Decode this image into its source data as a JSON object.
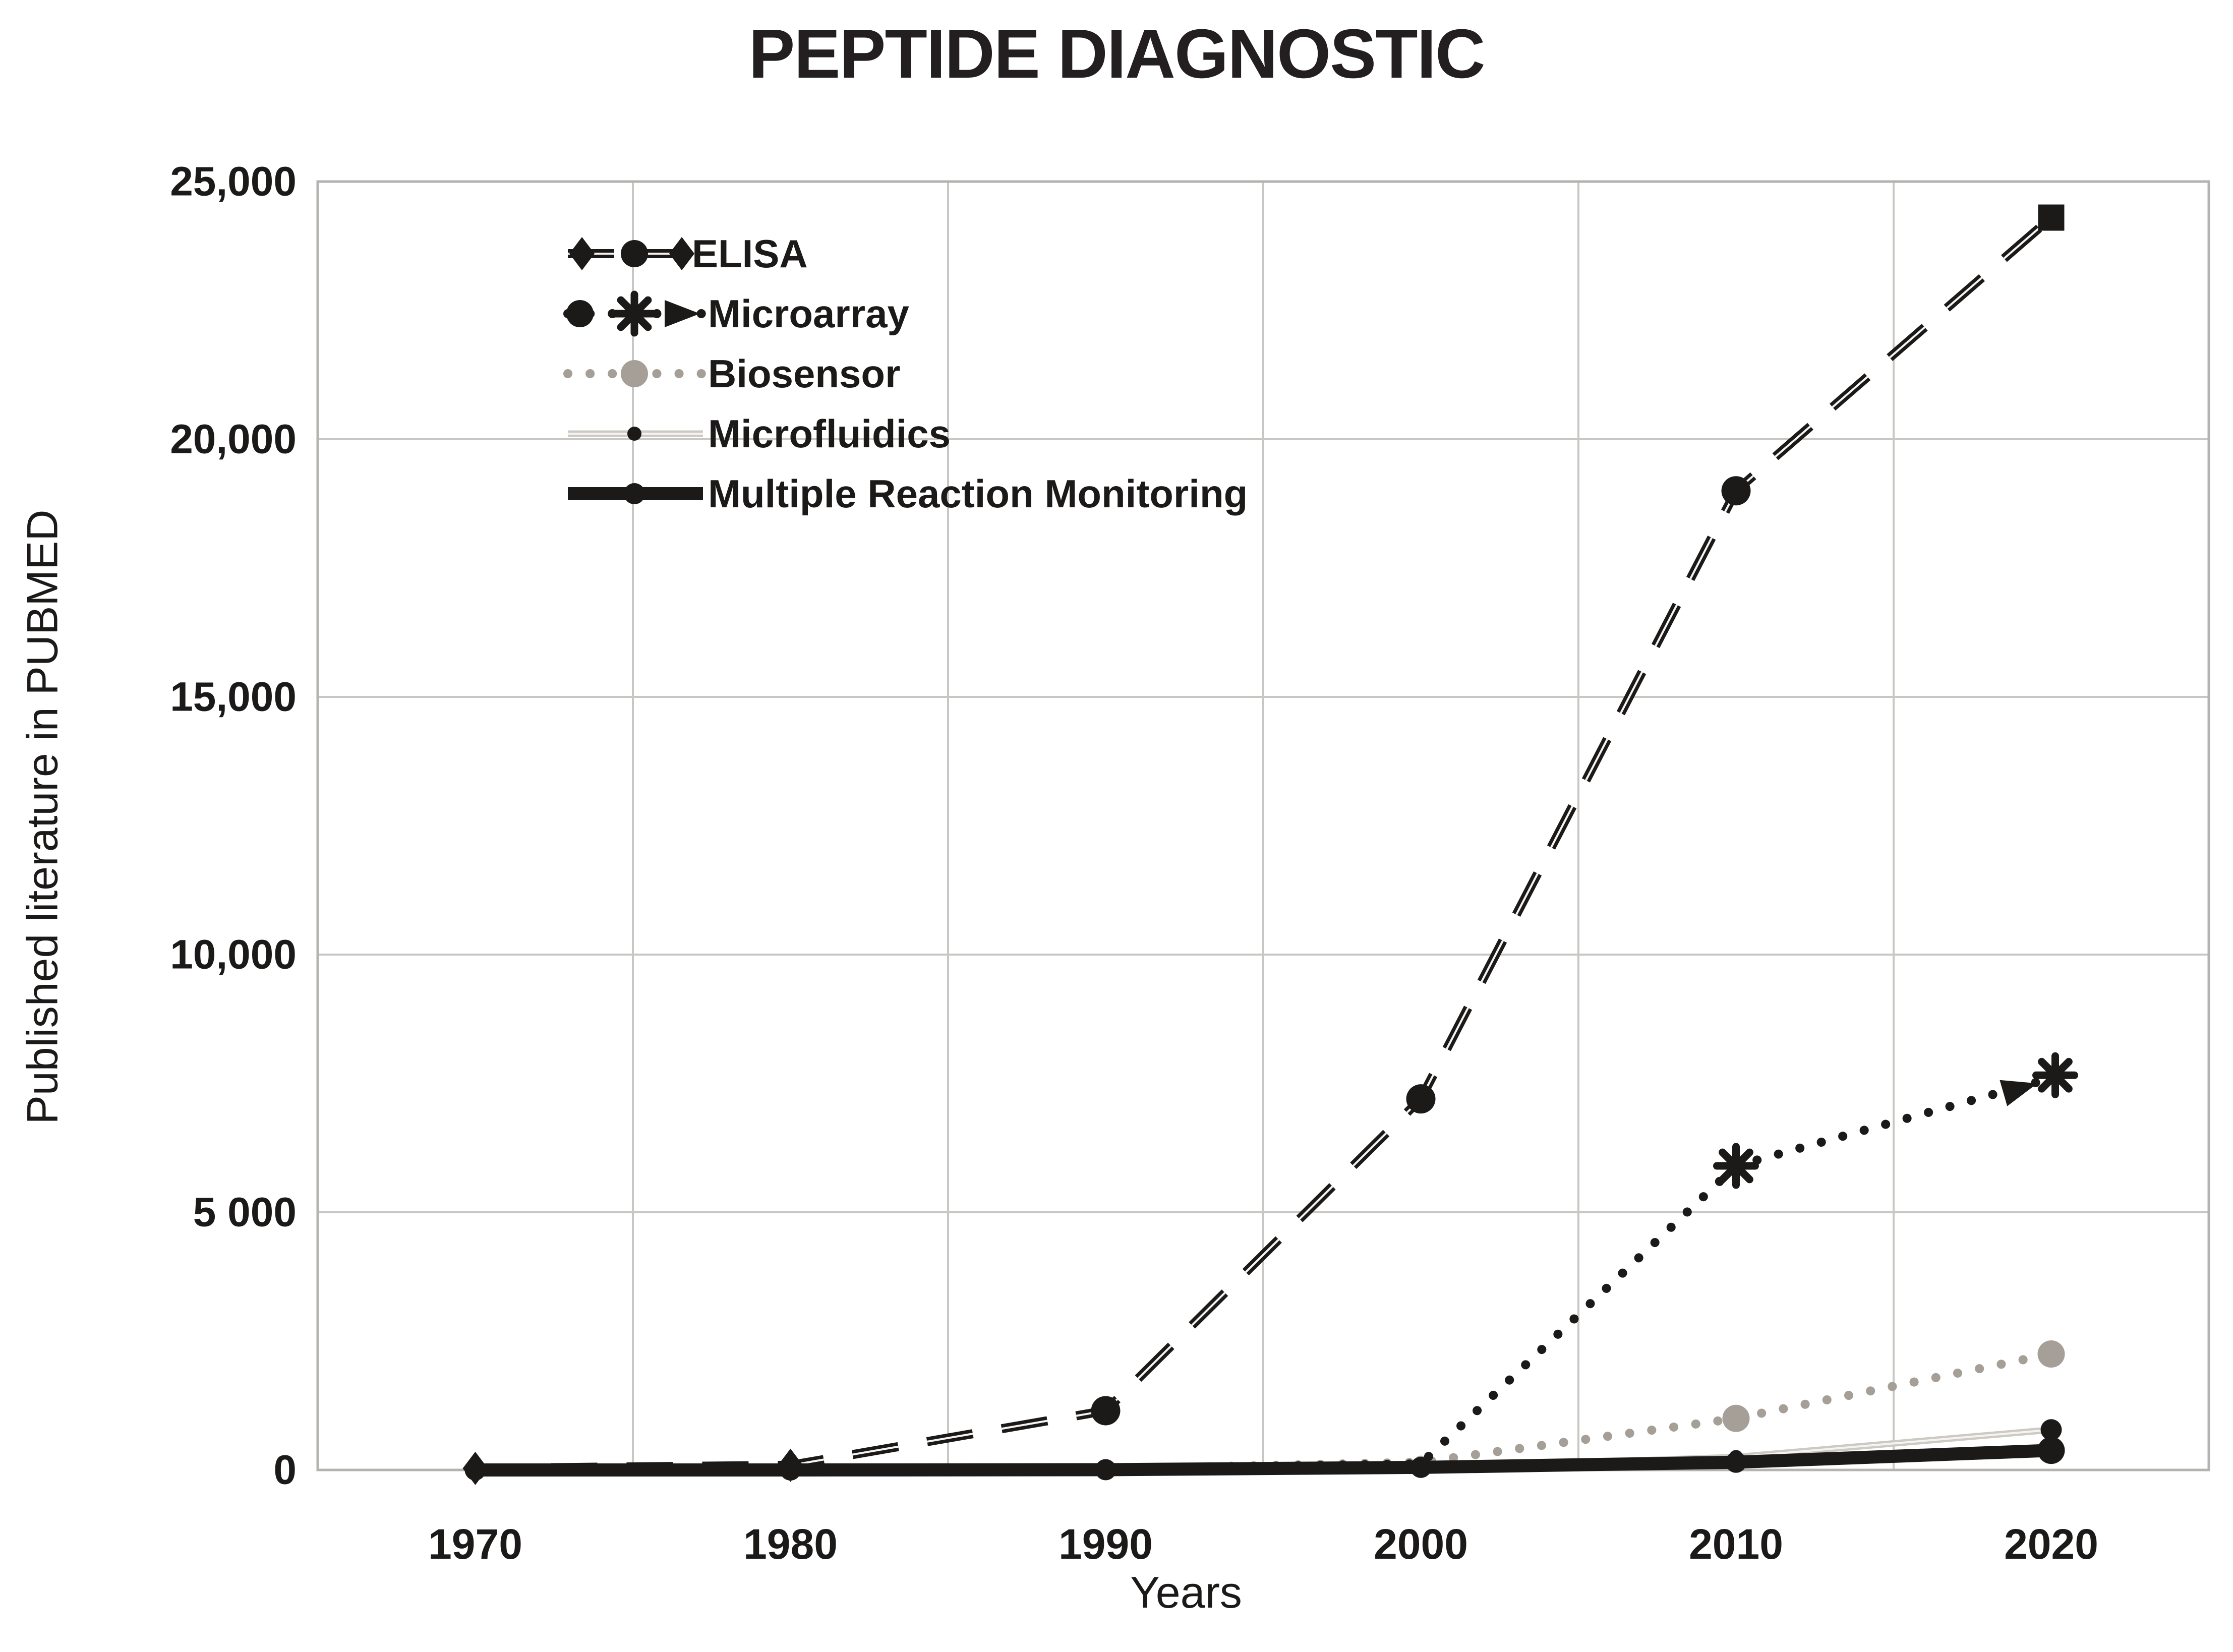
{
  "chart_data": {
    "type": "line",
    "title": "PEPTIDE DIAGNOSTIC",
    "xlabel": "Years",
    "ylabel": "Published literature in PUBMED",
    "x": [
      1970,
      1980,
      1990,
      2000,
      2010,
      2020
    ],
    "x_tick_labels": [
      "1970",
      "1980",
      "1990",
      "2000",
      "2010",
      "2020"
    ],
    "y_ticks": [
      0,
      5000,
      10000,
      15000,
      20000,
      25000
    ],
    "y_tick_labels": [
      "0",
      "5 000",
      "10,000",
      "15,000",
      "20,000",
      "25,000"
    ],
    "ylim": [
      0,
      25000
    ],
    "grid": true,
    "legend_position": "inside-top-left",
    "colors": {
      "black": "#1c1a19",
      "biosensor_gray": "#a59f98",
      "microfluidics_gray": "#cdcac4",
      "gridline": "#c9c7c4",
      "frame": "#b5b3b0",
      "dash_core": "#f5f4f2"
    },
    "series": [
      {
        "name": "ELISA",
        "values": [
          30,
          90,
          1150,
          7200,
          19000,
          24300
        ],
        "color": "#1c1a19",
        "line_style": "dashed",
        "markers": [
          "diamond",
          "diamond",
          "circle",
          "circle",
          "circle",
          "square"
        ]
      },
      {
        "name": "Microarray",
        "values": [
          0,
          0,
          20,
          120,
          5900,
          7600
        ],
        "color": "#1c1a19",
        "line_style": "dotted",
        "markers": [
          null,
          null,
          null,
          "circle-small",
          "star",
          "arrow-star"
        ]
      },
      {
        "name": "Biosensor",
        "values": [
          0,
          0,
          20,
          150,
          1000,
          2250
        ],
        "color": "#a59f98",
        "line_style": "dotted",
        "markers": [
          null,
          null,
          null,
          "circle-small",
          "circle-mid",
          "circle-mid"
        ]
      },
      {
        "name": "Microfluidics",
        "values": [
          0,
          0,
          5,
          40,
          250,
          780
        ],
        "color": "#cdcac4",
        "marker_color": "#1c1a19",
        "line_style": "solid-thin",
        "markers": [
          null,
          null,
          null,
          "dot-small",
          "dot-small",
          "dot"
        ]
      },
      {
        "name": "Multiple Reaction Monitoring",
        "values": [
          0,
          0,
          5,
          50,
          150,
          380
        ],
        "color": "#1c1a19",
        "line_style": "solid-thick",
        "markers": [
          "dot",
          "dot",
          "dot",
          "dot",
          "dot",
          "dot-large"
        ]
      }
    ]
  }
}
